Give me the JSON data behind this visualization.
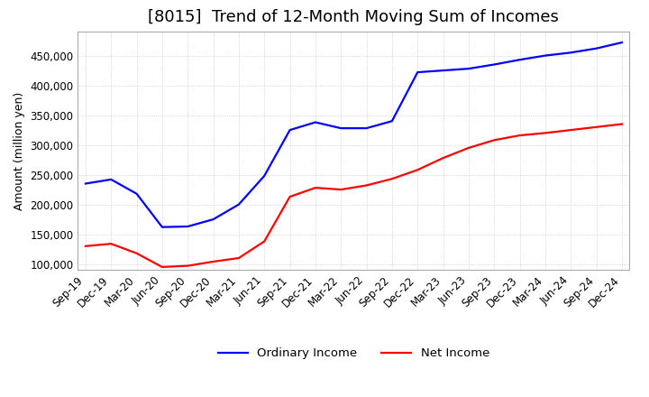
{
  "title": "[8015]  Trend of 12-Month Moving Sum of Incomes",
  "ylabel": "Amount (million yen)",
  "ylim": [
    90000,
    490000
  ],
  "yticks": [
    100000,
    150000,
    200000,
    250000,
    300000,
    350000,
    400000,
    450000
  ],
  "line_colors": {
    "ordinary": "#0000FF",
    "net": "#FF0000"
  },
  "legend_labels": [
    "Ordinary Income",
    "Net Income"
  ],
  "x_labels": [
    "Sep-19",
    "Dec-19",
    "Mar-20",
    "Jun-20",
    "Sep-20",
    "Dec-20",
    "Mar-21",
    "Jun-21",
    "Sep-21",
    "Dec-21",
    "Mar-22",
    "Jun-22",
    "Sep-22",
    "Dec-22",
    "Mar-23",
    "Jun-23",
    "Sep-23",
    "Dec-23",
    "Mar-24",
    "Jun-24",
    "Sep-24",
    "Dec-24"
  ],
  "ordinary_income": [
    235000,
    242000,
    218000,
    162000,
    163000,
    175000,
    200000,
    248000,
    325000,
    338000,
    328000,
    328000,
    340000,
    422000,
    425000,
    428000,
    435000,
    443000,
    450000,
    455000,
    462000,
    472000
  ],
  "net_income": [
    130000,
    134000,
    118000,
    95000,
    97000,
    104000,
    110000,
    138000,
    213000,
    228000,
    225000,
    232000,
    243000,
    258000,
    278000,
    295000,
    308000,
    316000,
    320000,
    325000,
    330000,
    335000
  ],
  "background_color": "#FFFFFF",
  "grid_color": "#AAAAAA",
  "title_fontsize": 13,
  "label_fontsize": 9,
  "tick_fontsize": 8.5
}
